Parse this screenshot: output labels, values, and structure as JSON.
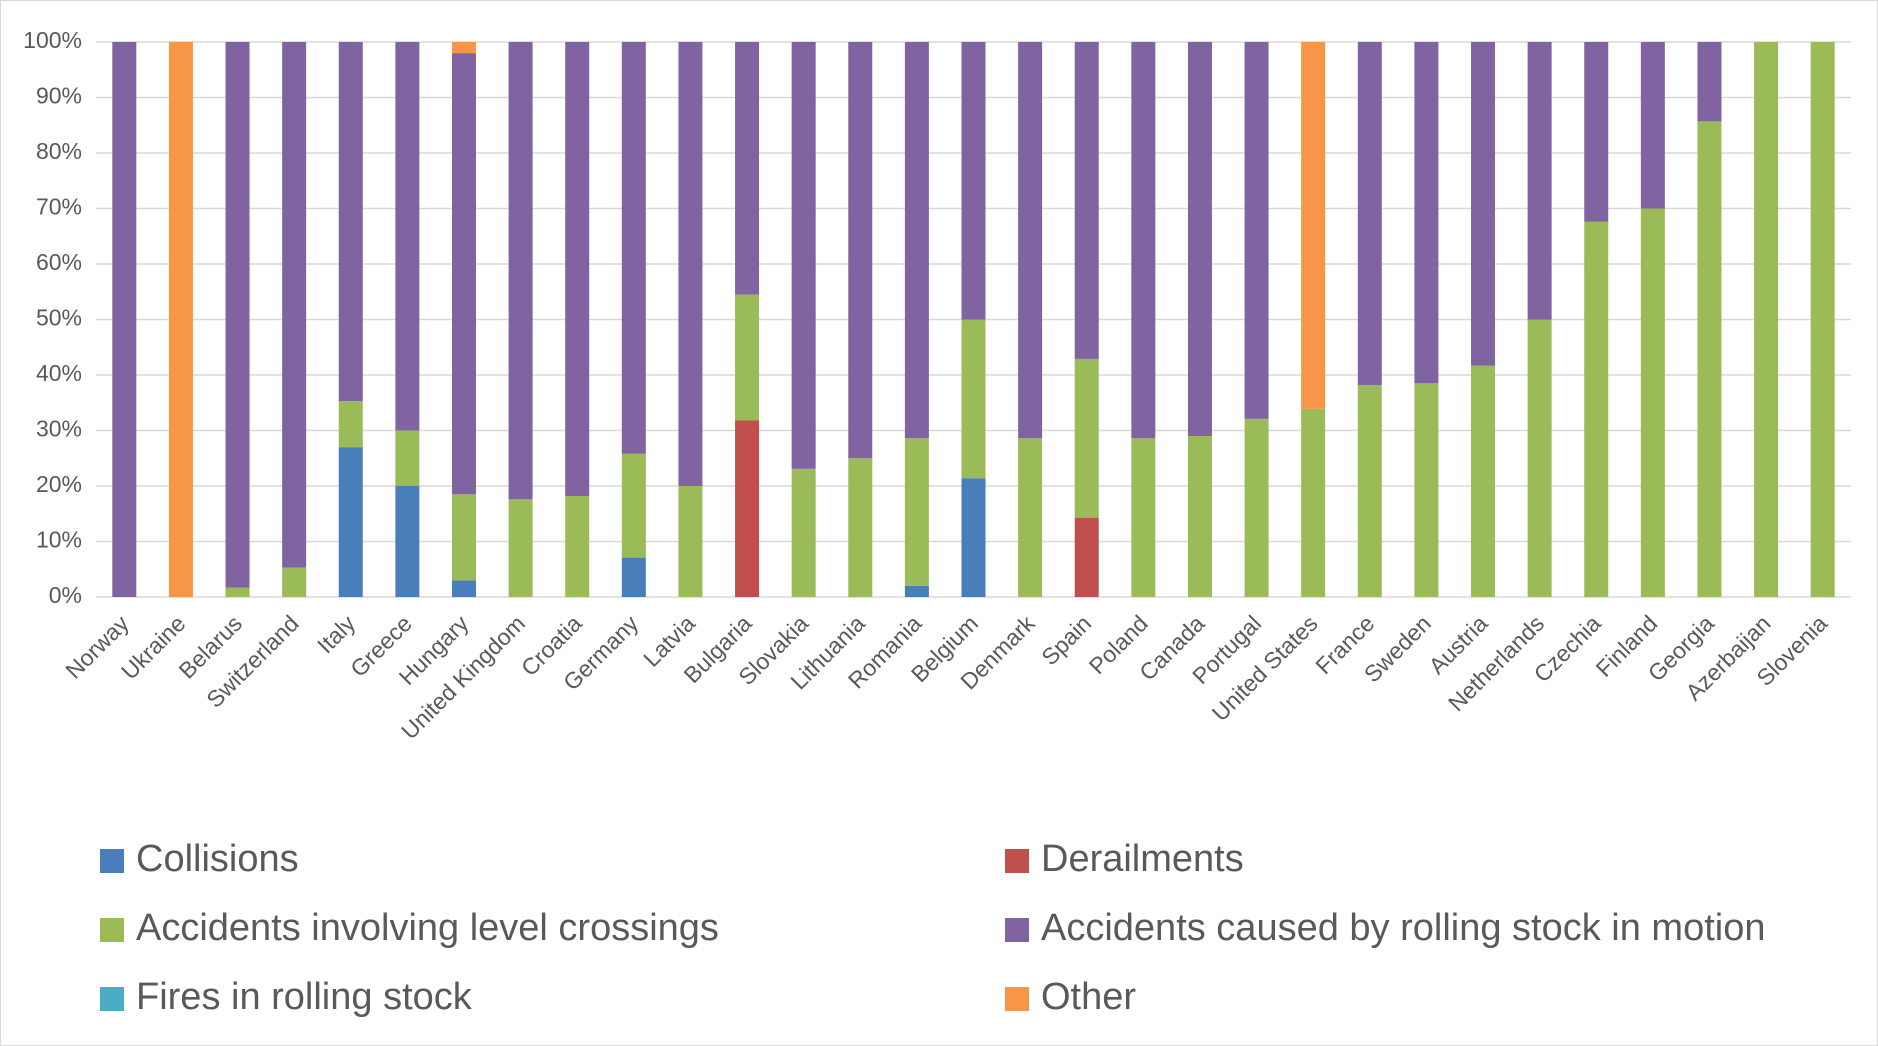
{
  "chart_data": {
    "type": "stacked_bar",
    "categories": [
      "Norway",
      "Ukraine",
      "Belarus",
      "Switzerland",
      "Italy",
      "Greece",
      "Hungary",
      "United Kingdom",
      "Croatia",
      "Germany",
      "Latvia",
      "Bulgaria",
      "Slovakia",
      "Lithuania",
      "Romania",
      "Belgium",
      "Denmark",
      "Spain",
      "Poland",
      "Canada",
      "Portugal",
      "United States",
      "France",
      "Sweden",
      "Austria",
      "Netherlands",
      "Czechia",
      "Finland",
      "Georgia",
      "Azerbaijan",
      "Slovenia"
    ],
    "series": [
      {
        "name": "Collisions",
        "color": "#4a7ebb",
        "values": [
          0,
          0,
          0,
          0,
          27,
          20,
          3,
          0,
          0,
          7.1,
          0,
          0,
          0,
          0,
          2,
          21.4,
          0,
          0,
          0,
          0,
          0,
          0,
          0,
          0,
          0,
          0,
          0,
          0,
          0,
          0,
          0
        ]
      },
      {
        "name": "Derailments",
        "color": "#c0504d",
        "values": [
          0,
          0,
          0,
          0,
          0,
          0,
          0,
          0,
          0,
          0,
          0,
          31.8,
          0,
          0,
          0,
          0,
          0,
          14.3,
          0,
          0,
          0,
          0,
          0,
          0,
          0,
          0,
          0,
          0,
          0,
          0,
          0
        ]
      },
      {
        "name": "Accidents involving level crossings",
        "color": "#9bbb59",
        "values": [
          0,
          0,
          1.7,
          5.3,
          8.3,
          10,
          15.5,
          17.6,
          18.2,
          18.7,
          20,
          22.7,
          23.1,
          25,
          26.6,
          28.6,
          28.6,
          28.6,
          28.6,
          29,
          32.1,
          33.9,
          38.2,
          38.5,
          41.7,
          50,
          67.6,
          70,
          85.7,
          100,
          100
        ]
      },
      {
        "name": "Accidents caused by rolling stock in motion",
        "color": "#8064a2",
        "values": [
          100,
          0,
          98.3,
          94.7,
          64.7,
          70,
          79.5,
          82.4,
          81.8,
          74.2,
          80,
          45.5,
          76.9,
          75,
          71.4,
          50,
          71.4,
          57.1,
          71.4,
          71,
          67.9,
          0,
          61.8,
          61.5,
          58.3,
          50,
          32.4,
          30,
          14.3,
          0,
          0
        ]
      },
      {
        "name": "Fires in rolling stock",
        "color": "#4bacc6",
        "values": [
          0,
          0,
          0,
          0,
          0,
          0,
          0,
          0,
          0,
          0,
          0,
          0,
          0,
          0,
          0,
          0,
          0,
          0,
          0,
          0,
          0,
          0,
          0,
          0,
          0,
          0,
          0,
          0,
          0,
          0,
          0
        ]
      },
      {
        "name": "Other",
        "color": "#f79646",
        "values": [
          0,
          100,
          0,
          0,
          0,
          0,
          2,
          0,
          0,
          0,
          0,
          0,
          0,
          0,
          0,
          0,
          0,
          0,
          0,
          0,
          0,
          66.1,
          0,
          0,
          0,
          0,
          0,
          0,
          0,
          0,
          0
        ]
      }
    ],
    "ylim": [
      0,
      100
    ],
    "yticks": [
      {
        "value": 0,
        "label": "0%"
      },
      {
        "value": 10,
        "label": "10%"
      },
      {
        "value": 20,
        "label": "20%"
      },
      {
        "value": 30,
        "label": "30%"
      },
      {
        "value": 40,
        "label": "40%"
      },
      {
        "value": 50,
        "label": "50%"
      },
      {
        "value": 60,
        "label": "60%"
      },
      {
        "value": 70,
        "label": "70%"
      },
      {
        "value": 80,
        "label": "80%"
      },
      {
        "value": 90,
        "label": "90%"
      },
      {
        "value": 100,
        "label": "100%"
      }
    ],
    "grid": true,
    "legend": "bottom"
  }
}
